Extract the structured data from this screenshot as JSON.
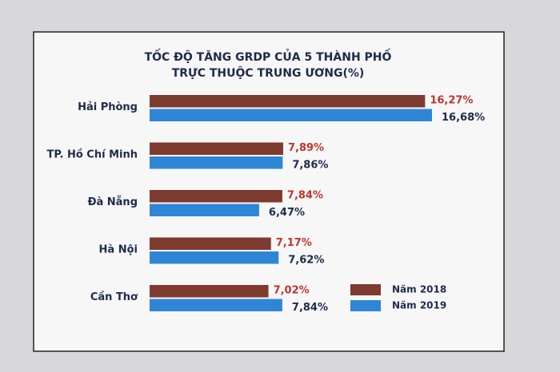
{
  "chart_data": {
    "type": "hbar",
    "title": [
      "TỐC ĐỘ TĂNG GRDP CỦA 5 THÀNH PHỐ",
      "TRỰC THUỘC TRUNG ƯƠNG(%)"
    ],
    "categories": [
      "Hải Phòng",
      "TP. Hồ Chí Minh",
      "Đà Nẵng",
      "Hà Nội",
      "Cần Thơ"
    ],
    "series": [
      {
        "name": "Năm 2018",
        "color": "#7e3b2f",
        "label_color": "#c0352b",
        "values": [
          16.27,
          7.89,
          7.84,
          7.17,
          7.02
        ],
        "value_labels": [
          "16,27%",
          "7,89%",
          "7,84%",
          "7,17%",
          "7,02%"
        ]
      },
      {
        "name": "Năm 2019",
        "color": "#2f86d6",
        "label_color": "#1f2a4a",
        "values": [
          16.68,
          7.86,
          6.47,
          7.62,
          7.84
        ],
        "value_labels": [
          "16,68%",
          "7,86%",
          "6,47%",
          "7,62%",
          "7,84%"
        ]
      }
    ],
    "legend": "bottom-right"
  }
}
